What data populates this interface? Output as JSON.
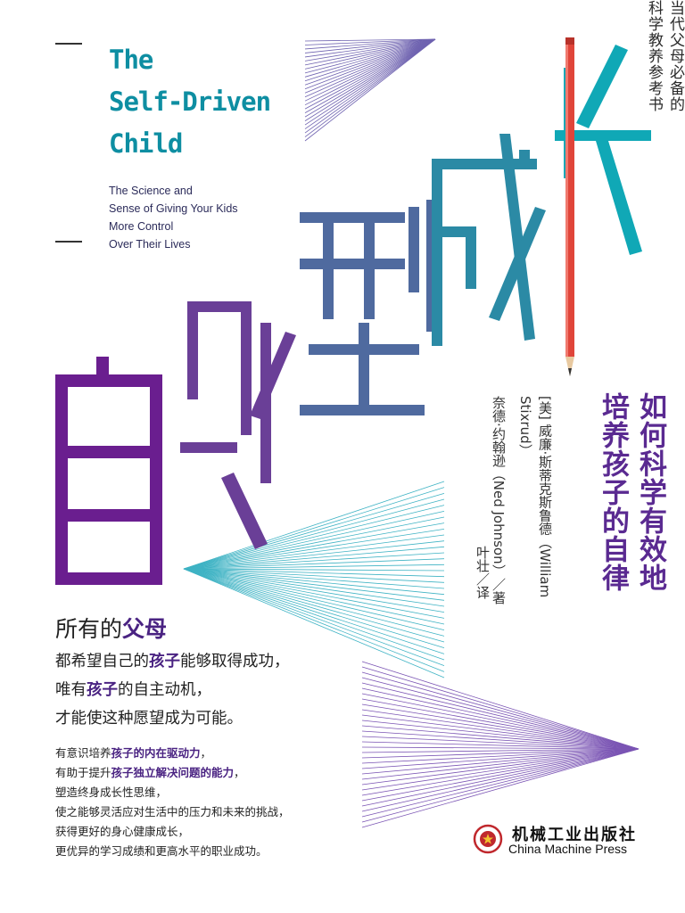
{
  "side_tag": {
    "columns": [
      "当代父母必备的",
      "科学教养参考书"
    ],
    "dash_top": "—",
    "dash_bottom": "—"
  },
  "english_title": {
    "lines": [
      "The",
      "Self-Driven",
      "Child"
    ],
    "subtitle_lines": [
      "The Science and",
      "Sense of Giving Your Kids",
      "More Control",
      "Over Their Lives"
    ]
  },
  "main_title": {
    "chars": [
      "自",
      "驱",
      "型",
      "成",
      "长"
    ],
    "gradient_start": "#00a9b5",
    "gradient_end": "#6a1e8f"
  },
  "subtitle": {
    "columns": [
      "如何科学有效地",
      "培养孩子的自律"
    ]
  },
  "authors": {
    "line1": "[美] 威廉·斯蒂克斯鲁德（William Stixrud）",
    "line2": "奈德·约翰逊（Ned Johnson）／著",
    "translator": "叶壮／译"
  },
  "slogan": {
    "lead_prefix": "所有的",
    "lead_bold": "父母",
    "line2_a": "都希望自己的",
    "line2_b": "孩子",
    "line2_c": "能够取得成功，",
    "line3_a": "唯有",
    "line3_b": "孩子",
    "line3_c": "的自主动机，",
    "line4": "才能使这种愿望成为可能。"
  },
  "points": {
    "p1_a": "有意识培养",
    "p1_b": "孩子的内在驱动力",
    "p1_c": "，",
    "p2_a": "有助于提升",
    "p2_b": "孩子独立解决问题的能力",
    "p2_c": "，",
    "p3": "塑造终身成长性思维，",
    "p4": "使之能够灵活应对生活中的压力和未来的挑战，",
    "p5": "获得更好的身心健康成长，",
    "p6": "更优异的学习成绩和更高水平的职业成功。"
  },
  "publisher": {
    "name_cn": "机械工业出版社",
    "name_en": "China Machine Press"
  },
  "colors": {
    "teal": "#0e8ea2",
    "purple": "#5a2a91",
    "pencil_red": "#e0453a"
  }
}
